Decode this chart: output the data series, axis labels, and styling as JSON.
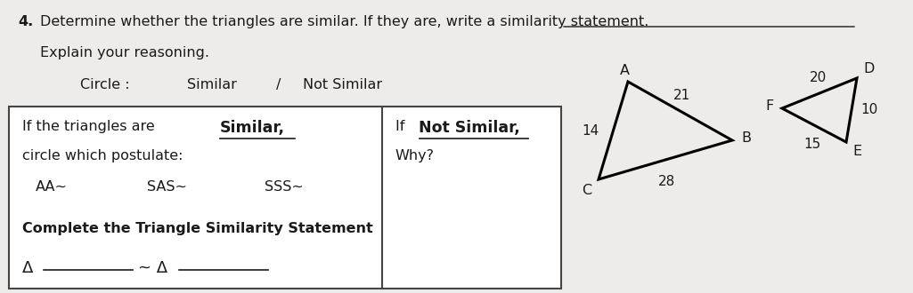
{
  "title_num": "4.",
  "title_text": "Determine whether the triangles are similar. If they are, write a similarity statement.",
  "title_underline_start": "similarity statement.",
  "title_text2": "Explain your reasoning.",
  "circle_label": "Circle :",
  "similar_label": "Similar",
  "slash": "/",
  "not_similar_label": "Not Similar",
  "box_left_line1a": "If the triangles are ",
  "box_left_line1b": "Similar,",
  "box_left_line2": "circle which postulate:",
  "box_left_postulates": [
    "AA~",
    "SAS~",
    "SSS~"
  ],
  "box_left_complete": "Complete the Triangle Similarity Statement",
  "box_right_line1a": "If ",
  "box_right_line1b": "Not Similar,",
  "box_right_line2": "Why?",
  "tri1_A": [
    7.05,
    2.38
  ],
  "tri1_B": [
    8.22,
    1.72
  ],
  "tri1_C": [
    6.72,
    1.28
  ],
  "tri1_side_AB": "21",
  "tri1_side_AC": "14",
  "tri1_side_CB": "28",
  "tri2_F": [
    8.78,
    2.08
  ],
  "tri2_D": [
    9.62,
    2.42
  ],
  "tri2_E": [
    9.5,
    1.7
  ],
  "tri2_side_FD": "20",
  "tri2_side_FE": "15",
  "tri2_side_DE": "10",
  "bg_color": "#eeecea",
  "box_color": "#ffffff",
  "text_color": "#1a1a1a",
  "line_color": "#444444"
}
